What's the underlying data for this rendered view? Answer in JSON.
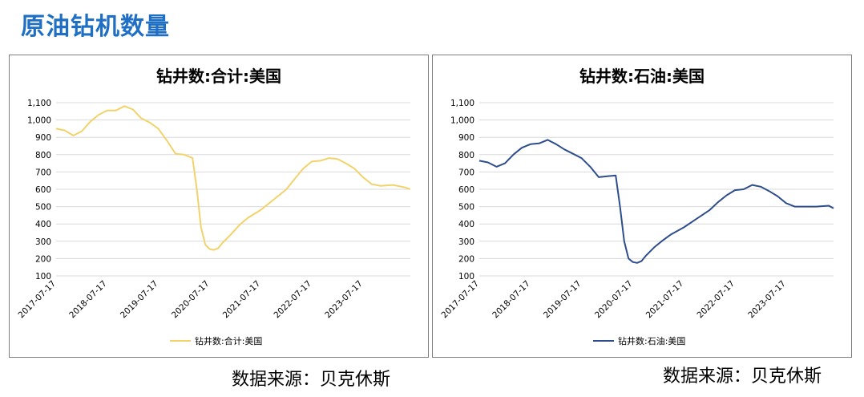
{
  "page": {
    "title": "原油钻机数量",
    "source_left": "数据来源：贝克休斯",
    "source_right": "数据来源：贝克休斯"
  },
  "colors": {
    "total": "#f2d36b",
    "oil": "#2e4d8c",
    "grid": "#d9d9d9",
    "title": "#1f6fc5"
  },
  "chart_data": [
    {
      "type": "line",
      "title": "钻井数:合计:美国",
      "xlabel": "",
      "ylabel": "",
      "ylim": [
        100,
        1100
      ],
      "yticks": [
        "1,100",
        "1,000",
        "900",
        "800",
        "700",
        "600",
        "500",
        "400",
        "300",
        "200",
        "100"
      ],
      "xticks": [
        "2017-07-17",
        "2018-07-17",
        "2019-07-17",
        "2020-07-17",
        "2021-07-17",
        "2022-07-17",
        "2023-07-17"
      ],
      "grid": true,
      "legend_position": "bottom",
      "series": [
        {
          "name": "钻井数:合计:美国",
          "color": "#f2d36b",
          "points": [
            [
              "2017-07-17",
              950
            ],
            [
              "2017-09-17",
              940
            ],
            [
              "2017-11-17",
              910
            ],
            [
              "2018-01-17",
              935
            ],
            [
              "2018-03-17",
              990
            ],
            [
              "2018-05-17",
              1030
            ],
            [
              "2018-07-17",
              1055
            ],
            [
              "2018-09-17",
              1055
            ],
            [
              "2018-11-17",
              1080
            ],
            [
              "2019-01-17",
              1060
            ],
            [
              "2019-03-17",
              1010
            ],
            [
              "2019-05-17",
              985
            ],
            [
              "2019-07-17",
              950
            ],
            [
              "2019-09-17",
              880
            ],
            [
              "2019-11-17",
              805
            ],
            [
              "2020-01-17",
              800
            ],
            [
              "2020-03-17",
              780
            ],
            [
              "2020-04-17",
              600
            ],
            [
              "2020-05-17",
              380
            ],
            [
              "2020-06-17",
              280
            ],
            [
              "2020-07-17",
              255
            ],
            [
              "2020-08-17",
              250
            ],
            [
              "2020-09-17",
              260
            ],
            [
              "2020-10-17",
              290
            ],
            [
              "2020-12-17",
              340
            ],
            [
              "2021-02-17",
              395
            ],
            [
              "2021-04-17",
              435
            ],
            [
              "2021-07-17",
              480
            ],
            [
              "2021-10-17",
              540
            ],
            [
              "2022-01-17",
              600
            ],
            [
              "2022-03-17",
              660
            ],
            [
              "2022-05-17",
              720
            ],
            [
              "2022-07-17",
              760
            ],
            [
              "2022-09-17",
              765
            ],
            [
              "2022-11-17",
              780
            ],
            [
              "2023-01-17",
              775
            ],
            [
              "2023-03-17",
              750
            ],
            [
              "2023-05-17",
              720
            ],
            [
              "2023-07-17",
              670
            ],
            [
              "2023-09-17",
              630
            ],
            [
              "2023-11-17",
              620
            ],
            [
              "2024-02-17",
              625
            ],
            [
              "2024-05-17",
              610
            ],
            [
              "2024-06-20",
              600
            ]
          ]
        }
      ]
    },
    {
      "type": "line",
      "title": "钻井数:石油:美国",
      "xlabel": "",
      "ylabel": "",
      "ylim": [
        100,
        1100
      ],
      "yticks": [
        "1,100",
        "1,000",
        "900",
        "800",
        "700",
        "600",
        "500",
        "400",
        "300",
        "200",
        "100"
      ],
      "xticks": [
        "2017-07-17",
        "2018-07-17",
        "2019-07-17",
        "2020-07-17",
        "2021-07-17",
        "2022-07-17",
        "2023-07-17"
      ],
      "grid": true,
      "legend_position": "bottom",
      "series": [
        {
          "name": "钻井数:石油:美国",
          "color": "#2e4d8c",
          "points": [
            [
              "2017-07-17",
              765
            ],
            [
              "2017-09-17",
              755
            ],
            [
              "2017-11-17",
              730
            ],
            [
              "2018-01-17",
              750
            ],
            [
              "2018-03-17",
              800
            ],
            [
              "2018-05-17",
              840
            ],
            [
              "2018-07-17",
              860
            ],
            [
              "2018-09-17",
              865
            ],
            [
              "2018-11-17",
              885
            ],
            [
              "2019-01-17",
              860
            ],
            [
              "2019-03-17",
              830
            ],
            [
              "2019-05-17",
              805
            ],
            [
              "2019-07-17",
              780
            ],
            [
              "2019-09-17",
              730
            ],
            [
              "2019-11-17",
              670
            ],
            [
              "2020-01-17",
              675
            ],
            [
              "2020-03-17",
              680
            ],
            [
              "2020-04-17",
              500
            ],
            [
              "2020-05-17",
              300
            ],
            [
              "2020-06-17",
              200
            ],
            [
              "2020-07-17",
              180
            ],
            [
              "2020-08-17",
              175
            ],
            [
              "2020-09-17",
              185
            ],
            [
              "2020-10-17",
              215
            ],
            [
              "2020-12-17",
              265
            ],
            [
              "2021-02-17",
              305
            ],
            [
              "2021-04-17",
              340
            ],
            [
              "2021-07-17",
              380
            ],
            [
              "2021-10-17",
              430
            ],
            [
              "2022-01-17",
              480
            ],
            [
              "2022-03-17",
              525
            ],
            [
              "2022-05-17",
              565
            ],
            [
              "2022-07-17",
              595
            ],
            [
              "2022-09-17",
              600
            ],
            [
              "2022-11-17",
              625
            ],
            [
              "2023-01-17",
              615
            ],
            [
              "2023-03-17",
              590
            ],
            [
              "2023-05-17",
              560
            ],
            [
              "2023-07-17",
              520
            ],
            [
              "2023-09-17",
              500
            ],
            [
              "2023-11-17",
              500
            ],
            [
              "2024-02-17",
              500
            ],
            [
              "2024-05-17",
              505
            ],
            [
              "2024-06-20",
              490
            ]
          ]
        }
      ]
    }
  ]
}
